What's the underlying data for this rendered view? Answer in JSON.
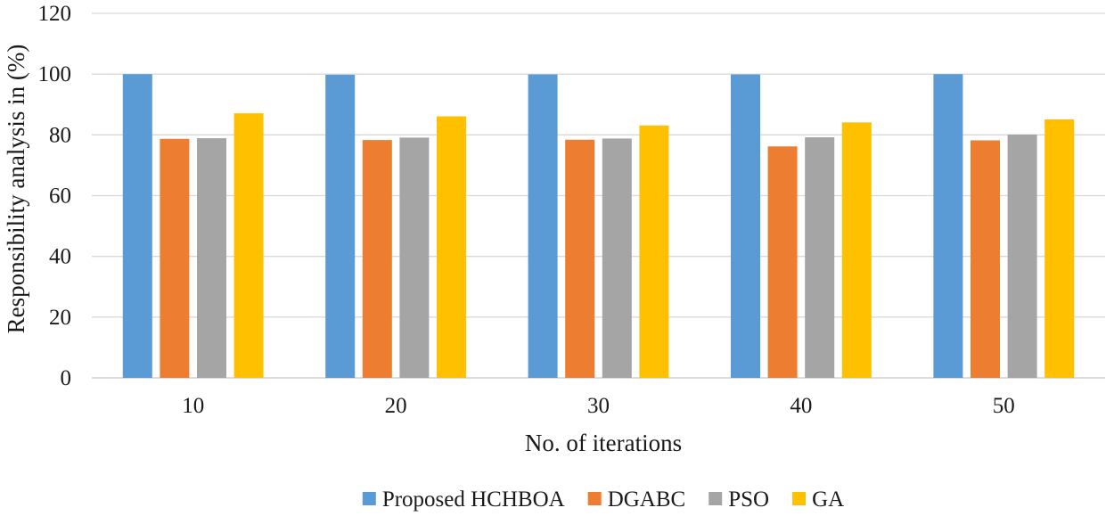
{
  "chart_data": {
    "type": "bar",
    "title": "",
    "xlabel": "No. of iterations",
    "ylabel": "Responsibility analysis in (%)",
    "ylim": [
      0,
      120
    ],
    "yticks": [
      0,
      20,
      40,
      60,
      80,
      100,
      120
    ],
    "grid": true,
    "legend_position": "bottom",
    "categories": [
      "10",
      "20",
      "30",
      "40",
      "50"
    ],
    "series": [
      {
        "name": "Proposed HCHBOA",
        "color": "#5b9bd5",
        "values": [
          100,
          99.8,
          99.9,
          99.9,
          100
        ]
      },
      {
        "name": "DGABC",
        "color": "#ed7d31",
        "values": [
          78.7,
          78.3,
          78.4,
          76.2,
          78.2
        ]
      },
      {
        "name": "PSO",
        "color": "#a5a5a5",
        "values": [
          78.9,
          79.1,
          78.8,
          79.2,
          80.1
        ]
      },
      {
        "name": "GA",
        "color": "#ffc000",
        "values": [
          87.1,
          86.1,
          83.1,
          84.1,
          85.1
        ]
      }
    ]
  }
}
